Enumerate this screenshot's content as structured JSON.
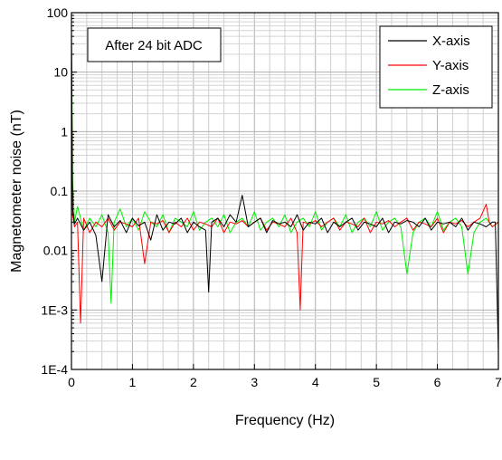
{
  "chart_data": {
    "type": "line",
    "title": "",
    "xlabel": "Frequency (Hz)",
    "ylabel": "Magnetometer noise (nT)",
    "xlim": [
      0,
      7
    ],
    "ylim": [
      0.0001,
      100
    ],
    "yscale": "log",
    "grid": true,
    "legend_position": "top-right",
    "annotation": "After 24 bit ADC",
    "x_ticks": [
      {
        "value": 0,
        "label": "0"
      },
      {
        "value": 1,
        "label": "1"
      },
      {
        "value": 2,
        "label": "2"
      },
      {
        "value": 3,
        "label": "3"
      },
      {
        "value": 4,
        "label": "4"
      },
      {
        "value": 5,
        "label": "5"
      },
      {
        "value": 6,
        "label": "6"
      },
      {
        "value": 7,
        "label": "7"
      }
    ],
    "y_ticks": [
      {
        "value": 0.0001,
        "label": "1E-4"
      },
      {
        "value": 0.001,
        "label": "1E-3"
      },
      {
        "value": 0.01,
        "label": "0.01"
      },
      {
        "value": 0.1,
        "label": "0.1"
      },
      {
        "value": 1,
        "label": "1"
      },
      {
        "value": 10,
        "label": "10"
      },
      {
        "value": 100,
        "label": "100"
      }
    ],
    "series": [
      {
        "name": "X-axis",
        "color": "#000000",
        "x": [
          0,
          0.02,
          0.05,
          0.1,
          0.2,
          0.3,
          0.4,
          0.5,
          0.6,
          0.7,
          0.8,
          0.9,
          1.0,
          1.1,
          1.2,
          1.3,
          1.4,
          1.5,
          1.6,
          1.7,
          1.8,
          1.9,
          2.0,
          2.1,
          2.2,
          2.25,
          2.3,
          2.4,
          2.5,
          2.6,
          2.7,
          2.8,
          2.9,
          3.0,
          3.1,
          3.2,
          3.3,
          3.4,
          3.5,
          3.6,
          3.7,
          3.8,
          3.9,
          4.0,
          4.1,
          4.2,
          4.3,
          4.4,
          4.5,
          4.6,
          4.7,
          4.8,
          4.9,
          5.0,
          5.1,
          5.2,
          5.3,
          5.4,
          5.5,
          5.6,
          5.7,
          5.8,
          5.9,
          6.0,
          6.1,
          6.2,
          6.3,
          6.4,
          6.5,
          6.6,
          6.7,
          6.8,
          6.9,
          6.95,
          7.0
        ],
        "y": [
          40,
          0.05,
          0.028,
          0.035,
          0.022,
          0.03,
          0.018,
          0.003,
          0.04,
          0.025,
          0.032,
          0.02,
          0.035,
          0.026,
          0.03,
          0.015,
          0.04,
          0.022,
          0.03,
          0.028,
          0.035,
          0.02,
          0.03,
          0.025,
          0.022,
          0.002,
          0.03,
          0.035,
          0.025,
          0.04,
          0.03,
          0.085,
          0.025,
          0.03,
          0.035,
          0.02,
          0.032,
          0.028,
          0.03,
          0.025,
          0.04,
          0.022,
          0.03,
          0.028,
          0.035,
          0.02,
          0.03,
          0.025,
          0.03,
          0.035,
          0.022,
          0.03,
          0.028,
          0.025,
          0.035,
          0.02,
          0.03,
          0.028,
          0.032,
          0.03,
          0.025,
          0.035,
          0.022,
          0.03,
          0.028,
          0.03,
          0.025,
          0.035,
          0.022,
          0.03,
          0.028,
          0.025,
          0.03,
          0.03,
          0.0002
        ]
      },
      {
        "name": "Y-axis",
        "color": "#ff0000",
        "x": [
          0,
          0.02,
          0.05,
          0.1,
          0.15,
          0.2,
          0.3,
          0.4,
          0.5,
          0.6,
          0.7,
          0.8,
          0.9,
          1.0,
          1.1,
          1.2,
          1.3,
          1.4,
          1.5,
          1.6,
          1.7,
          1.8,
          1.9,
          2.0,
          2.1,
          2.2,
          2.3,
          2.4,
          2.5,
          2.6,
          2.7,
          2.8,
          2.9,
          3.0,
          3.1,
          3.2,
          3.3,
          3.4,
          3.5,
          3.6,
          3.7,
          3.75,
          3.8,
          3.9,
          4.0,
          4.1,
          4.2,
          4.3,
          4.4,
          4.5,
          4.6,
          4.7,
          4.8,
          4.9,
          5.0,
          5.1,
          5.2,
          5.3,
          5.4,
          5.5,
          5.6,
          5.7,
          5.8,
          5.9,
          6.0,
          6.1,
          6.2,
          6.3,
          6.4,
          6.5,
          6.6,
          6.7,
          6.8,
          6.85,
          6.9,
          7.0
        ],
        "y": [
          30,
          0.04,
          0.025,
          0.03,
          0.0006,
          0.035,
          0.02,
          0.03,
          0.025,
          0.035,
          0.022,
          0.03,
          0.028,
          0.025,
          0.035,
          0.006,
          0.03,
          0.028,
          0.032,
          0.02,
          0.03,
          0.025,
          0.035,
          0.022,
          0.03,
          0.028,
          0.025,
          0.035,
          0.02,
          0.03,
          0.028,
          0.032,
          0.025,
          0.03,
          0.035,
          0.022,
          0.03,
          0.028,
          0.025,
          0.035,
          0.02,
          0.001,
          0.03,
          0.028,
          0.032,
          0.025,
          0.03,
          0.035,
          0.022,
          0.03,
          0.028,
          0.025,
          0.035,
          0.02,
          0.03,
          0.028,
          0.032,
          0.025,
          0.03,
          0.035,
          0.022,
          0.03,
          0.028,
          0.025,
          0.035,
          0.02,
          0.03,
          0.028,
          0.032,
          0.025,
          0.03,
          0.035,
          0.06,
          0.03,
          0.025,
          0.03
        ]
      },
      {
        "name": "Z-axis",
        "color": "#00ee00",
        "x": [
          0,
          0.02,
          0.05,
          0.1,
          0.2,
          0.3,
          0.4,
          0.5,
          0.6,
          0.65,
          0.7,
          0.8,
          0.9,
          1.0,
          1.1,
          1.2,
          1.3,
          1.4,
          1.5,
          1.6,
          1.7,
          1.8,
          1.9,
          2.0,
          2.1,
          2.2,
          2.3,
          2.4,
          2.5,
          2.6,
          2.7,
          2.8,
          2.9,
          3.0,
          3.1,
          3.2,
          3.3,
          3.4,
          3.5,
          3.6,
          3.7,
          3.8,
          3.9,
          4.0,
          4.1,
          4.2,
          4.3,
          4.4,
          4.5,
          4.6,
          4.7,
          4.8,
          4.9,
          5.0,
          5.1,
          5.2,
          5.3,
          5.4,
          5.5,
          5.6,
          5.7,
          5.8,
          5.9,
          6.0,
          6.1,
          6.2,
          6.3,
          6.4,
          6.5,
          6.6,
          6.7,
          6.8,
          6.9,
          7.0
        ],
        "y": [
          60,
          0.15,
          0.03,
          0.055,
          0.022,
          0.035,
          0.025,
          0.04,
          0.02,
          0.0013,
          0.03,
          0.05,
          0.025,
          0.035,
          0.022,
          0.045,
          0.03,
          0.025,
          0.04,
          0.02,
          0.035,
          0.03,
          0.025,
          0.045,
          0.022,
          0.03,
          0.035,
          0.025,
          0.04,
          0.02,
          0.03,
          0.035,
          0.025,
          0.045,
          0.022,
          0.03,
          0.035,
          0.025,
          0.04,
          0.02,
          0.03,
          0.035,
          0.025,
          0.045,
          0.022,
          0.03,
          0.035,
          0.025,
          0.04,
          0.02,
          0.03,
          0.035,
          0.025,
          0.045,
          0.022,
          0.03,
          0.035,
          0.025,
          0.004,
          0.02,
          0.03,
          0.035,
          0.025,
          0.045,
          0.022,
          0.03,
          0.035,
          0.025,
          0.004,
          0.02,
          0.03,
          0.035,
          0.025,
          0.03
        ]
      }
    ]
  }
}
